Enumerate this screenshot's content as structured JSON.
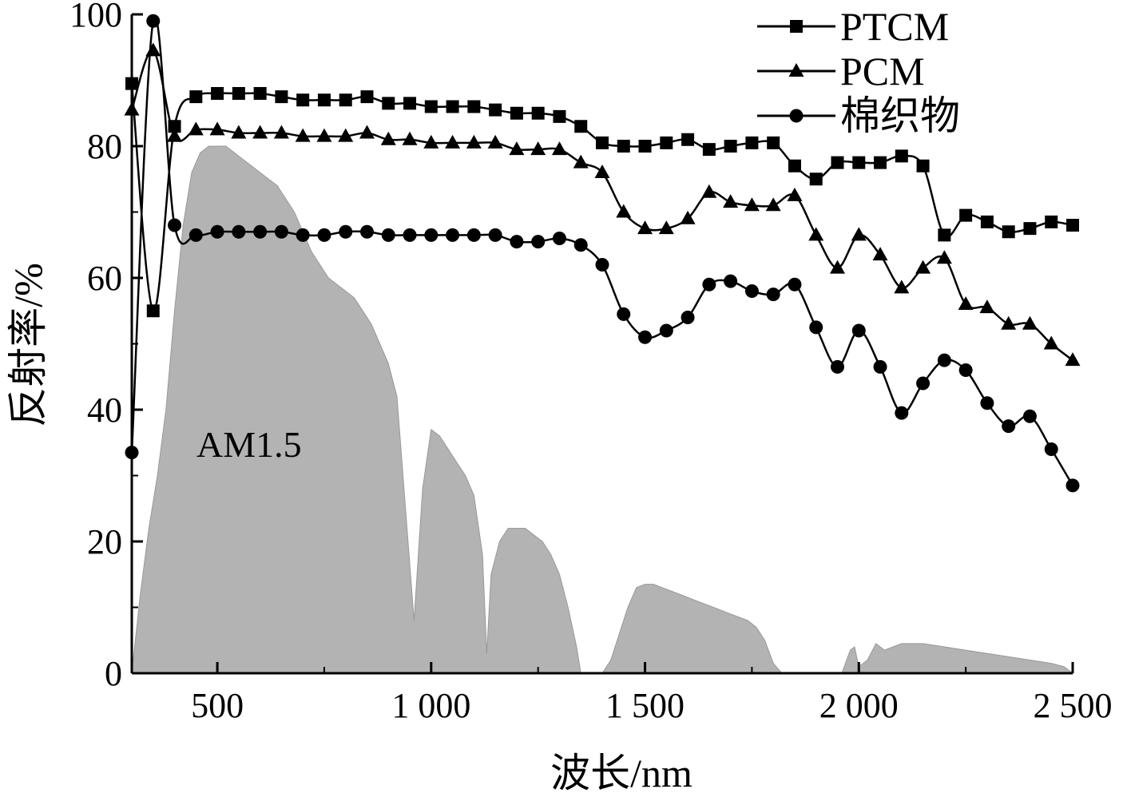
{
  "chart_data": {
    "type": "line",
    "title": "",
    "xlabel": "波长/nm",
    "ylabel": "反射率/%",
    "xlim": [
      300,
      2500
    ],
    "ylim": [
      0,
      100
    ],
    "grid": false,
    "legend_position": "top-right",
    "x_ticks": [
      500,
      1000,
      1500,
      2000,
      2500
    ],
    "x_tick_labels": [
      "500",
      "1 000",
      "1 500",
      "2 000",
      "2 500"
    ],
    "y_ticks": [
      0,
      20,
      40,
      60,
      80,
      100
    ],
    "y_tick_labels": [
      "0",
      "20",
      "40",
      "60",
      "80",
      "100"
    ],
    "annotation": "AM1.5",
    "series": [
      {
        "name": "PTCM",
        "marker": "square",
        "x": [
          300,
          350,
          400,
          450,
          500,
          550,
          600,
          650,
          700,
          750,
          800,
          850,
          900,
          950,
          1000,
          1050,
          1100,
          1150,
          1200,
          1250,
          1300,
          1350,
          1400,
          1450,
          1500,
          1550,
          1600,
          1650,
          1700,
          1750,
          1800,
          1850,
          1900,
          1950,
          2000,
          2050,
          2100,
          2150,
          2200,
          2250,
          2300,
          2350,
          2400,
          2450,
          2500
        ],
        "y": [
          89.5,
          55,
          83,
          87.5,
          88,
          88,
          88,
          87.5,
          87,
          87,
          87,
          87.5,
          86.5,
          86.5,
          86,
          86,
          86,
          85.5,
          85,
          85,
          84.5,
          83,
          80.5,
          80,
          80,
          80.5,
          81,
          79.5,
          80,
          80.5,
          80.5,
          77,
          75,
          77.5,
          77.5,
          77.5,
          78.5,
          77,
          66.5,
          69.5,
          68.5,
          67,
          67.5,
          68.5,
          68
        ]
      },
      {
        "name": "PCM",
        "marker": "triangle",
        "x": [
          300,
          350,
          400,
          450,
          500,
          550,
          600,
          650,
          700,
          750,
          800,
          850,
          900,
          950,
          1000,
          1050,
          1100,
          1150,
          1200,
          1250,
          1300,
          1350,
          1400,
          1450,
          1500,
          1550,
          1600,
          1650,
          1700,
          1750,
          1800,
          1850,
          1900,
          1950,
          2000,
          2050,
          2100,
          2150,
          2200,
          2250,
          2300,
          2350,
          2400,
          2450,
          2500
        ],
        "y": [
          85.5,
          94.5,
          81.5,
          82.5,
          82.5,
          82,
          82,
          82,
          81.5,
          81.5,
          81.5,
          82,
          81,
          81,
          80.5,
          80.5,
          80.5,
          80.5,
          79.5,
          79.5,
          79.5,
          77.5,
          76,
          70,
          67.5,
          67.5,
          69,
          73,
          71.5,
          71,
          71,
          72.5,
          66.5,
          61.5,
          66.5,
          63.5,
          58.5,
          61.5,
          63,
          56,
          55.5,
          53,
          53,
          50,
          47.5
        ]
      },
      {
        "name": "棉织物",
        "marker": "circle",
        "x": [
          300,
          350,
          400,
          450,
          500,
          550,
          600,
          650,
          700,
          750,
          800,
          850,
          900,
          950,
          1000,
          1050,
          1100,
          1150,
          1200,
          1250,
          1300,
          1350,
          1400,
          1450,
          1500,
          1550,
          1600,
          1650,
          1700,
          1750,
          1800,
          1850,
          1900,
          1950,
          2000,
          2050,
          2100,
          2150,
          2200,
          2250,
          2300,
          2350,
          2400,
          2450,
          2500
        ],
        "y": [
          33.5,
          99,
          68,
          66.5,
          67,
          67,
          67,
          67,
          66.5,
          66.5,
          67,
          67,
          66.5,
          66.5,
          66.5,
          66.5,
          66.5,
          66.5,
          65.5,
          65.5,
          66,
          65,
          62,
          54.5,
          51,
          52,
          54,
          59,
          59.5,
          58,
          57.5,
          59,
          52.5,
          46.5,
          52,
          46.5,
          39.5,
          44,
          47.5,
          46,
          41,
          37.5,
          39,
          34,
          28.5
        ]
      }
    ],
    "background_area": {
      "name": "AM1.5",
      "color": "#b3b3b3",
      "x": [
        300,
        320,
        340,
        360,
        380,
        400,
        420,
        440,
        460,
        480,
        500,
        520,
        540,
        560,
        580,
        600,
        620,
        640,
        660,
        680,
        700,
        720,
        740,
        760,
        780,
        800,
        820,
        840,
        860,
        880,
        900,
        920,
        940,
        960,
        980,
        1000,
        1020,
        1040,
        1060,
        1080,
        1100,
        1120,
        1130,
        1140,
        1160,
        1180,
        1200,
        1220,
        1240,
        1260,
        1280,
        1300,
        1320,
        1340,
        1350,
        1360,
        1380,
        1400,
        1420,
        1440,
        1460,
        1480,
        1500,
        1520,
        1540,
        1560,
        1580,
        1600,
        1620,
        1640,
        1660,
        1680,
        1700,
        1720,
        1740,
        1760,
        1780,
        1800,
        1820,
        1860,
        1900,
        1940,
        1960,
        1980,
        1990,
        2000,
        2020,
        2040,
        2060,
        2080,
        2100,
        2150,
        2200,
        2250,
        2300,
        2350,
        2400,
        2450,
        2480,
        2500
      ],
      "y": [
        0,
        12,
        22,
        30,
        40,
        55,
        68,
        76,
        79,
        80,
        80,
        80,
        79,
        78,
        77,
        76,
        75,
        74,
        72,
        70,
        67,
        64,
        62,
        60,
        59,
        58,
        57,
        55,
        53,
        50,
        47,
        42,
        25,
        8,
        28,
        37,
        36,
        34,
        32,
        30,
        27,
        18,
        3,
        15,
        20,
        22,
        22,
        22,
        21,
        20,
        18,
        15,
        10,
        4,
        0,
        0,
        0,
        0,
        2,
        6,
        10,
        13,
        13.5,
        13.5,
        13,
        12.5,
        12,
        11.5,
        11,
        10.5,
        10,
        9.5,
        9,
        8.5,
        8,
        7,
        5,
        1.5,
        0,
        0,
        0,
        0,
        0,
        3.5,
        4,
        1,
        2,
        4.5,
        3.5,
        4,
        4.5,
        4.5,
        4,
        3.5,
        3,
        2.5,
        2,
        1.5,
        1,
        0
      ]
    }
  }
}
